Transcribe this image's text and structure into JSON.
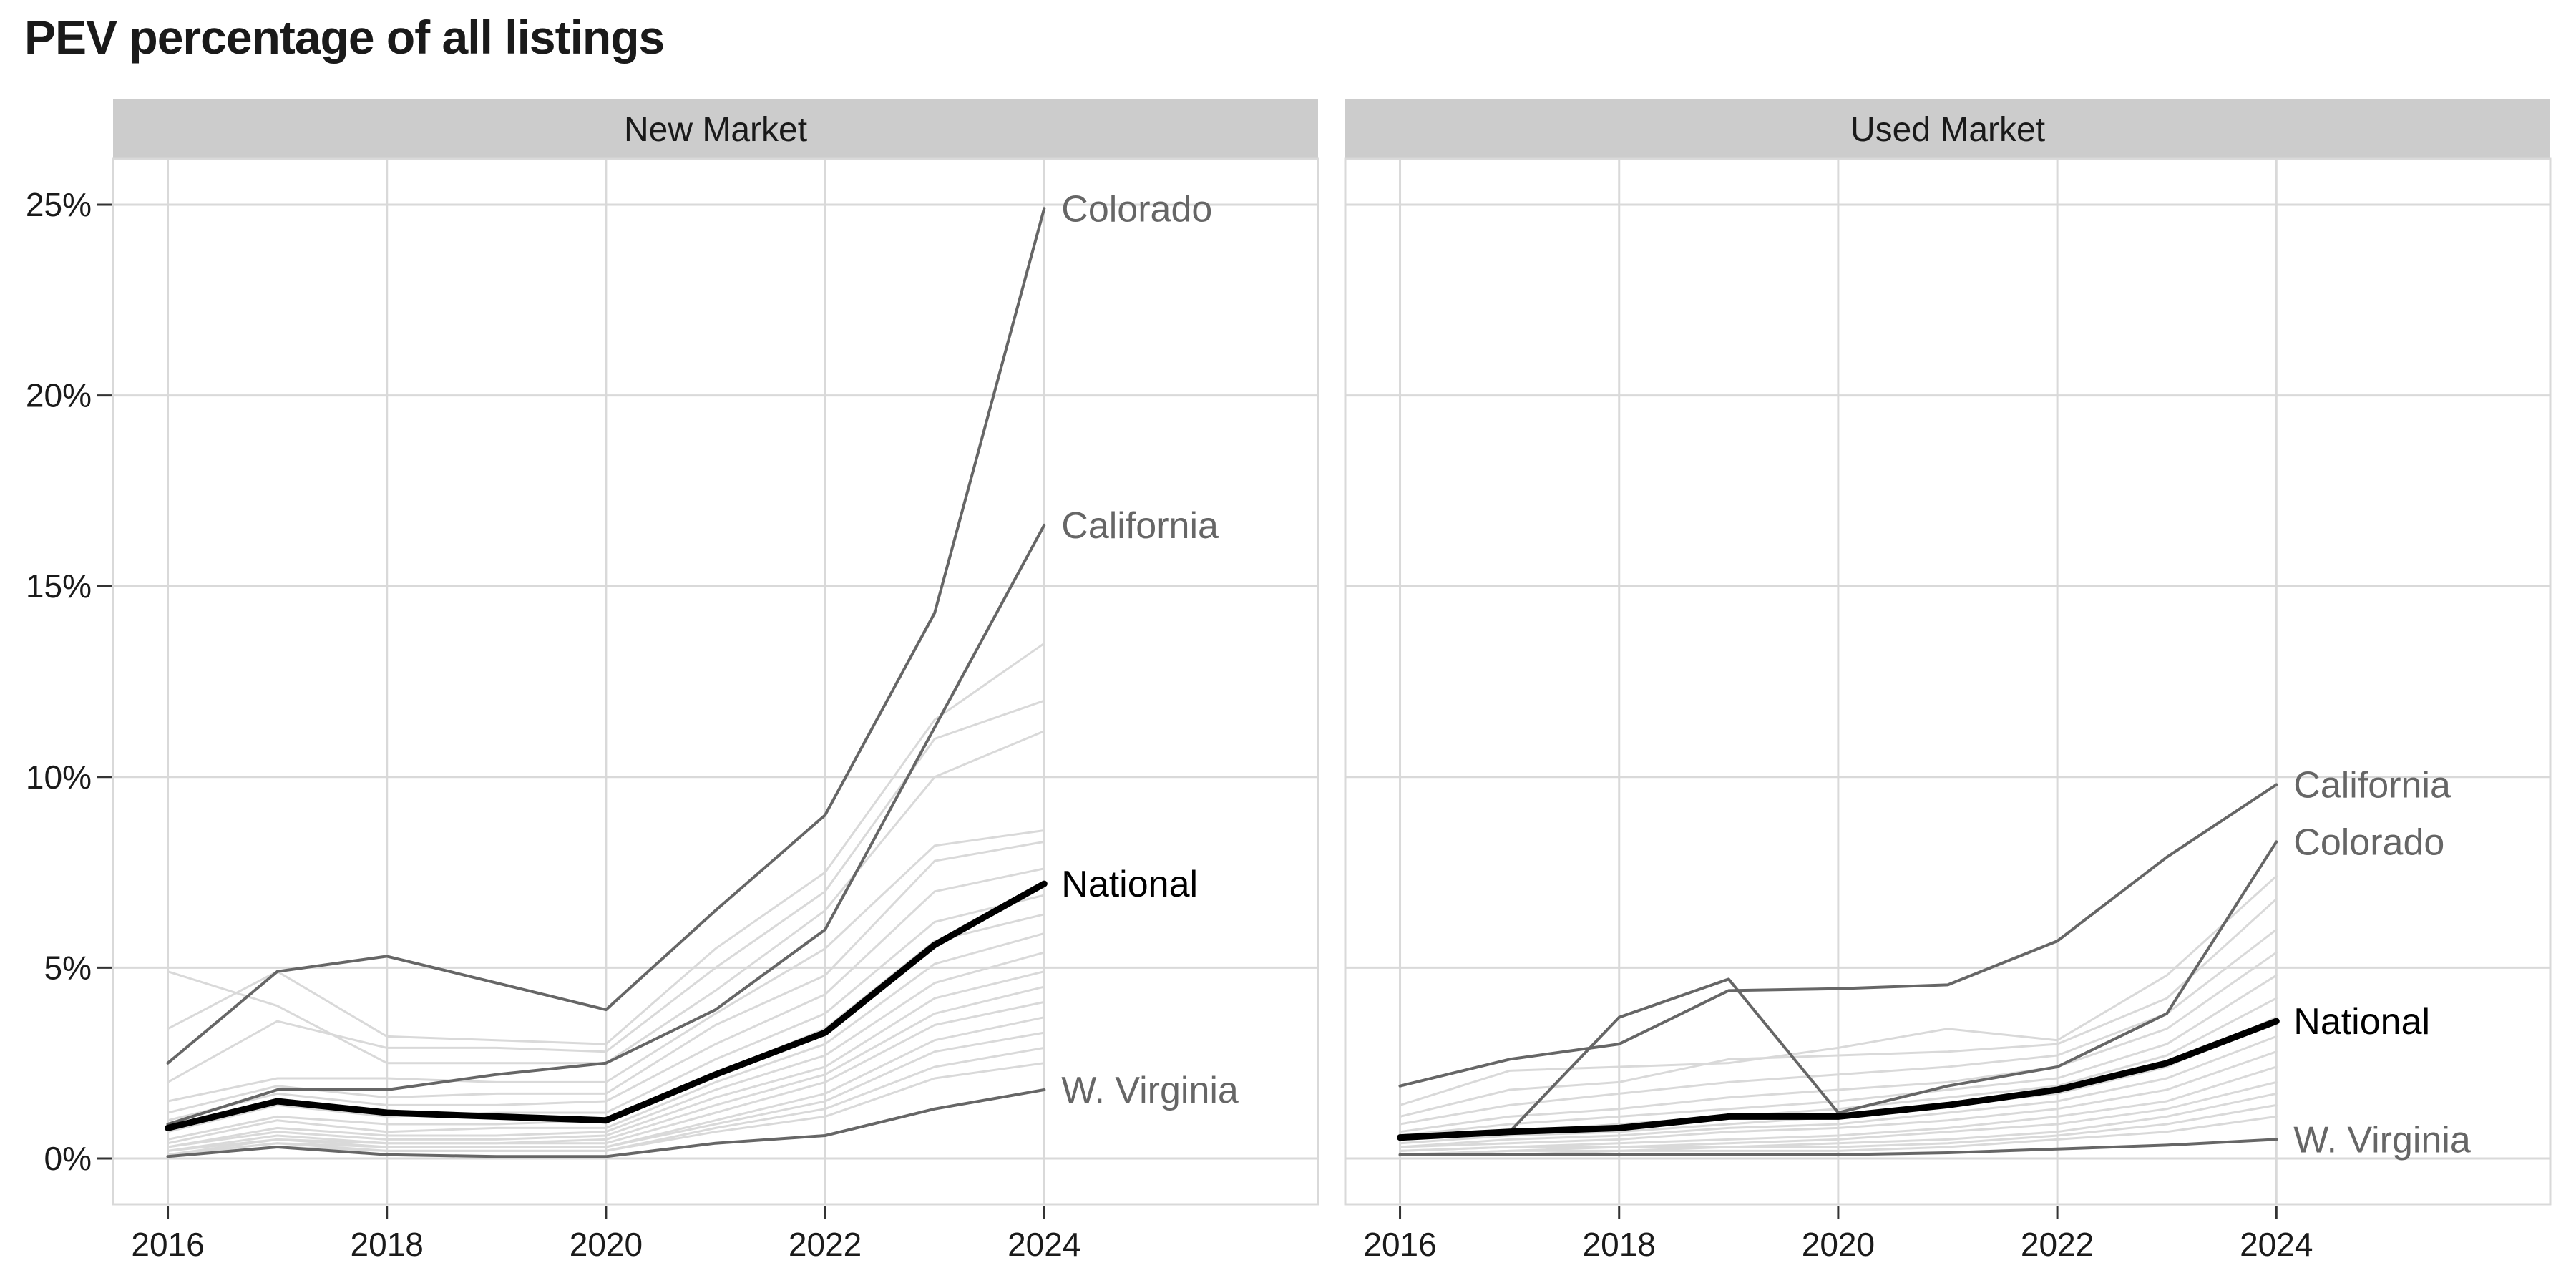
{
  "chart_data": {
    "type": "line",
    "title": "PEV percentage of all listings",
    "xlabel": "",
    "ylabel": "",
    "x": [
      2016,
      2017,
      2018,
      2019,
      2020,
      2021,
      2022,
      2023,
      2024
    ],
    "x_ticks": [
      "2016",
      "2018",
      "2020",
      "2022",
      "2024"
    ],
    "y_ticks": [
      "0%",
      "5%",
      "10%",
      "15%",
      "20%",
      "25%"
    ],
    "ylim": [
      -1.2,
      26.2
    ],
    "xlim": [
      2015.5,
      2026.5
    ],
    "grid": true,
    "colors": {
      "national": "#000000",
      "highlight": "#666666",
      "background_states": "#d9d9d9",
      "strip_fill": "#cccccc",
      "grid": "#d9d9d9"
    },
    "panels": [
      {
        "name": "New Market",
        "series": [
          {
            "name": "Colorado",
            "role": "highlight",
            "values": [
              2.5,
              4.9,
              5.3,
              4.6,
              3.9,
              6.5,
              9.0,
              14.3,
              24.9
            ]
          },
          {
            "name": "California",
            "role": "highlight",
            "values": [
              0.9,
              1.8,
              1.8,
              2.2,
              2.5,
              3.9,
              6.0,
              11.3,
              16.6
            ]
          },
          {
            "name": "National",
            "role": "national",
            "values": [
              0.8,
              1.5,
              1.2,
              1.1,
              1.0,
              2.2,
              3.3,
              5.6,
              7.2
            ]
          },
          {
            "name": "W. Virginia",
            "role": "highlight",
            "values": [
              0.05,
              0.3,
              0.1,
              0.05,
              0.05,
              0.4,
              0.6,
              1.3,
              1.8
            ]
          }
        ],
        "background_series": [
          [
            3.4,
            4.9,
            3.2,
            3.1,
            3.0,
            5.5,
            7.5,
            11.5,
            13.5
          ],
          [
            2.0,
            3.6,
            2.9,
            2.9,
            2.8,
            5.0,
            7.0,
            11.0,
            12.0
          ],
          [
            4.9,
            4.0,
            2.5,
            2.5,
            2.5,
            4.4,
            6.5,
            10.0,
            11.2
          ],
          [
            1.5,
            2.1,
            2.1,
            2.0,
            2.0,
            3.8,
            5.5,
            8.2,
            8.6
          ],
          [
            1.2,
            1.9,
            1.6,
            1.7,
            1.7,
            3.5,
            4.8,
            7.8,
            8.3
          ],
          [
            1.0,
            1.7,
            1.4,
            1.4,
            1.5,
            3.0,
            4.3,
            7.0,
            7.6
          ],
          [
            0.7,
            1.4,
            1.1,
            1.2,
            1.2,
            2.6,
            3.8,
            6.2,
            6.9
          ],
          [
            0.5,
            1.1,
            0.9,
            0.9,
            1.0,
            2.2,
            3.4,
            5.7,
            6.4
          ],
          [
            0.4,
            1.0,
            0.7,
            0.8,
            0.8,
            2.0,
            3.0,
            5.1,
            5.9
          ],
          [
            0.3,
            0.8,
            0.6,
            0.6,
            0.7,
            1.8,
            2.7,
            4.6,
            5.4
          ],
          [
            0.3,
            0.7,
            0.5,
            0.5,
            0.6,
            1.6,
            2.4,
            4.2,
            4.9
          ],
          [
            0.2,
            0.6,
            0.4,
            0.4,
            0.5,
            1.4,
            2.2,
            3.8,
            4.5
          ],
          [
            0.2,
            0.5,
            0.4,
            0.4,
            0.4,
            1.2,
            2.0,
            3.5,
            4.1
          ],
          [
            0.1,
            0.5,
            0.3,
            0.3,
            0.3,
            1.0,
            1.7,
            3.1,
            3.7
          ],
          [
            0.1,
            0.4,
            0.3,
            0.3,
            0.3,
            0.9,
            1.5,
            2.8,
            3.3
          ],
          [
            0.1,
            0.4,
            0.2,
            0.2,
            0.2,
            0.8,
            1.3,
            2.4,
            2.9
          ],
          [
            0.1,
            0.3,
            0.2,
            0.2,
            0.2,
            0.7,
            1.1,
            2.1,
            2.5
          ]
        ]
      },
      {
        "name": "Used Market",
        "series": [
          {
            "name": "California",
            "role": "highlight",
            "values": [
              1.9,
              2.6,
              3.0,
              4.4,
              4.45,
              4.55,
              5.7,
              7.9,
              9.8
            ]
          },
          {
            "name": "Colorado",
            "role": "highlight",
            "values": [
              0.6,
              0.7,
              3.7,
              4.7,
              1.2,
              1.9,
              2.4,
              3.8,
              8.3
            ]
          },
          {
            "name": "National",
            "role": "national",
            "values": [
              0.55,
              0.7,
              0.8,
              1.1,
              1.1,
              1.4,
              1.8,
              2.5,
              3.6
            ]
          },
          {
            "name": "W. Virginia",
            "role": "highlight",
            "values": [
              0.1,
              0.1,
              0.1,
              0.1,
              0.1,
              0.15,
              0.25,
              0.35,
              0.5
            ]
          }
        ],
        "background_series": [
          [
            1.4,
            2.3,
            2.4,
            2.5,
            2.9,
            3.4,
            3.1,
            4.8,
            7.4
          ],
          [
            1.1,
            1.8,
            2.0,
            2.6,
            2.7,
            2.8,
            3.0,
            4.2,
            6.8
          ],
          [
            0.9,
            1.4,
            1.7,
            2.0,
            2.2,
            2.4,
            2.7,
            3.8,
            6.0
          ],
          [
            0.7,
            1.1,
            1.3,
            1.6,
            1.8,
            2.0,
            2.4,
            3.4,
            5.4
          ],
          [
            0.6,
            0.9,
            1.1,
            1.3,
            1.5,
            1.8,
            2.1,
            3.0,
            4.8
          ],
          [
            0.5,
            0.7,
            0.9,
            1.1,
            1.3,
            1.6,
            1.9,
            2.7,
            4.2
          ],
          [
            0.4,
            0.6,
            0.7,
            0.9,
            1.1,
            1.4,
            1.7,
            2.4,
            3.7
          ],
          [
            0.3,
            0.5,
            0.6,
            0.8,
            0.9,
            1.2,
            1.5,
            2.1,
            3.2
          ],
          [
            0.3,
            0.4,
            0.5,
            0.7,
            0.8,
            1.0,
            1.3,
            1.8,
            2.8
          ],
          [
            0.2,
            0.3,
            0.4,
            0.5,
            0.6,
            0.8,
            1.1,
            1.5,
            2.4
          ],
          [
            0.2,
            0.3,
            0.3,
            0.4,
            0.5,
            0.7,
            0.9,
            1.3,
            2.0
          ],
          [
            0.1,
            0.2,
            0.3,
            0.3,
            0.4,
            0.5,
            0.7,
            1.1,
            1.7
          ],
          [
            0.1,
            0.2,
            0.2,
            0.3,
            0.3,
            0.4,
            0.6,
            0.9,
            1.4
          ],
          [
            0.1,
            0.1,
            0.2,
            0.2,
            0.2,
            0.3,
            0.5,
            0.7,
            1.1
          ]
        ]
      }
    ]
  }
}
